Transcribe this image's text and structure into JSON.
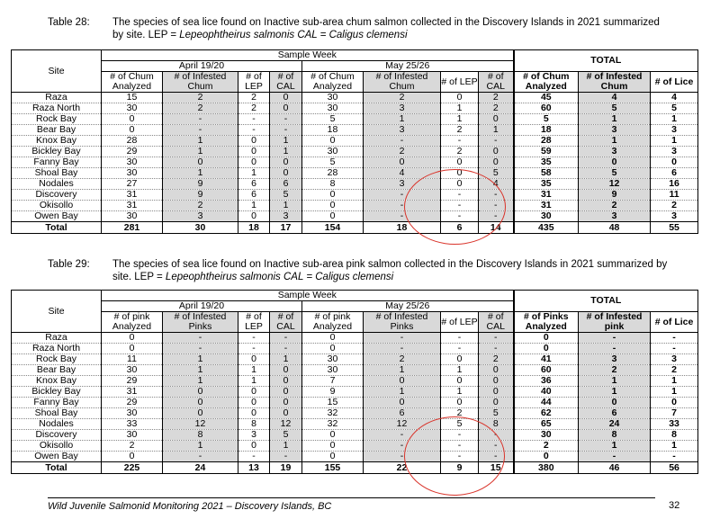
{
  "t28": {
    "caption_num": "Table 28:",
    "caption_text1": "The species of sea lice found on Inactive sub-area chum salmon collected in the Discovery Islands in 2021 summarized",
    "caption_text2a": "by site.  LEP = ",
    "caption_text2b": "Lepeophtheirus salmonis CAL = Caligus clemensi",
    "site_label": "Site",
    "sample_week": "Sample Week",
    "total_label": "TOTAL",
    "week1": "April 19/20",
    "week2": "May 25/26",
    "col_analyzed": "# of Chum Analyzed",
    "col_infested": "# of Infested Chum",
    "col_lep": "# of LEP",
    "col_cal": "# of CAL",
    "tot_analyzed": "# of Chum Analyzed",
    "tot_infested": "# of Infested Chum",
    "tot_lice": "# of Lice",
    "rows": [
      [
        "Raza",
        "15",
        "2",
        "2",
        "0",
        "30",
        "2",
        "0",
        "2",
        "45",
        "4",
        "4"
      ],
      [
        "Raza North",
        "30",
        "2",
        "2",
        "0",
        "30",
        "3",
        "1",
        "2",
        "60",
        "5",
        "5"
      ],
      [
        "Rock Bay",
        "0",
        "-",
        "-",
        "-",
        "5",
        "1",
        "1",
        "0",
        "5",
        "1",
        "1"
      ],
      [
        "Bear Bay",
        "0",
        "-",
        "-",
        "-",
        "18",
        "3",
        "2",
        "1",
        "18",
        "3",
        "3"
      ],
      [
        "Knox Bay",
        "28",
        "1",
        "0",
        "1",
        "0",
        "-",
        "-",
        "-",
        "28",
        "1",
        "1"
      ],
      [
        "Bickley Bay",
        "29",
        "1",
        "0",
        "1",
        "30",
        "2",
        "2",
        "0",
        "59",
        "3",
        "3"
      ],
      [
        "Fanny Bay",
        "30",
        "0",
        "0",
        "0",
        "5",
        "0",
        "0",
        "0",
        "35",
        "0",
        "0"
      ],
      [
        "Shoal Bay",
        "30",
        "1",
        "1",
        "0",
        "28",
        "4",
        "0",
        "5",
        "58",
        "5",
        "6"
      ],
      [
        "Nodales",
        "27",
        "9",
        "6",
        "6",
        "8",
        "3",
        "0",
        "4",
        "35",
        "12",
        "16"
      ],
      [
        "Discovery",
        "31",
        "9",
        "6",
        "5",
        "0",
        "-",
        "-",
        "-",
        "31",
        "9",
        "11"
      ],
      [
        "Okisollo",
        "31",
        "2",
        "1",
        "1",
        "0",
        "-",
        "-",
        "-",
        "31",
        "2",
        "2"
      ],
      [
        "Owen Bay",
        "30",
        "3",
        "0",
        "3",
        "0",
        "-",
        "-",
        "-",
        "30",
        "3",
        "3"
      ]
    ],
    "total_row": [
      "Total",
      "281",
      "30",
      "18",
      "17",
      "154",
      "18",
      "6",
      "14",
      "435",
      "48",
      "55"
    ]
  },
  "t29": {
    "caption_num": "Table 29:",
    "caption_text1": "The species of sea lice found on Inactive sub-area pink salmon collected in the Discovery Islands in 2021 summarized by",
    "caption_text2a": "site.  LEP = ",
    "caption_text2b": "Lepeophtheirus salmonis  CAL = Caligus clemensi",
    "site_label": "Site",
    "sample_week": "Sample Week",
    "total_label": "TOTAL",
    "week1": "April 19/20",
    "week2": "May 25/26",
    "col_analyzed": "# of pink Analyzed",
    "col_infested": "# of Infested Pinks",
    "col_lep": "# of LEP",
    "col_cal": "# of CAL",
    "tot_analyzed": "# of Pinks Analyzed",
    "tot_infested": "# of Infested pink",
    "tot_lice": "# of Lice",
    "rows": [
      [
        "Raza",
        "0",
        "-",
        "-",
        "-",
        "0",
        "-",
        "-",
        "-",
        "0",
        "-",
        "-"
      ],
      [
        "Raza North",
        "0",
        "-",
        "-",
        "-",
        "0",
        "-",
        "-",
        "-",
        "0",
        "-",
        "-"
      ],
      [
        "Rock Bay",
        "11",
        "1",
        "0",
        "1",
        "30",
        "2",
        "0",
        "2",
        "41",
        "3",
        "3"
      ],
      [
        "Bear Bay",
        "30",
        "1",
        "1",
        "0",
        "30",
        "1",
        "1",
        "0",
        "60",
        "2",
        "2"
      ],
      [
        "Knox Bay",
        "29",
        "1",
        "1",
        "0",
        "7",
        "0",
        "0",
        "0",
        "36",
        "1",
        "1"
      ],
      [
        "Bickley Bay",
        "31",
        "0",
        "0",
        "0",
        "9",
        "1",
        "1",
        "0",
        "40",
        "1",
        "1"
      ],
      [
        "Fanny Bay",
        "29",
        "0",
        "0",
        "0",
        "15",
        "0",
        "0",
        "0",
        "44",
        "0",
        "0"
      ],
      [
        "Shoal Bay",
        "30",
        "0",
        "0",
        "0",
        "32",
        "6",
        "2",
        "5",
        "62",
        "6",
        "7"
      ],
      [
        "Nodales",
        "33",
        "12",
        "8",
        "12",
        "32",
        "12",
        "5",
        "8",
        "65",
        "24",
        "33"
      ],
      [
        "Discovery",
        "30",
        "8",
        "3",
        "5",
        "0",
        "-",
        "-",
        "-",
        "30",
        "8",
        "8"
      ],
      [
        "Okisollo",
        "2",
        "1",
        "0",
        "1",
        "0",
        "-",
        "-",
        "-",
        "2",
        "1",
        "1"
      ],
      [
        "Owen Bay",
        "0",
        "-",
        "-",
        "-",
        "0",
        "-",
        "-",
        "-",
        "0",
        "-",
        "-"
      ]
    ],
    "total_row": [
      "Total",
      "225",
      "24",
      "13",
      "19",
      "155",
      "22",
      "9",
      "15",
      "380",
      "46",
      "56"
    ]
  },
  "footer": "Wild Juvenile Salmonid Monitoring 2021 – Discovery Islands, BC",
  "page_number": "32",
  "colors": {
    "shade": "#d9d9d9",
    "annotation_circle": "#d9342b"
  }
}
